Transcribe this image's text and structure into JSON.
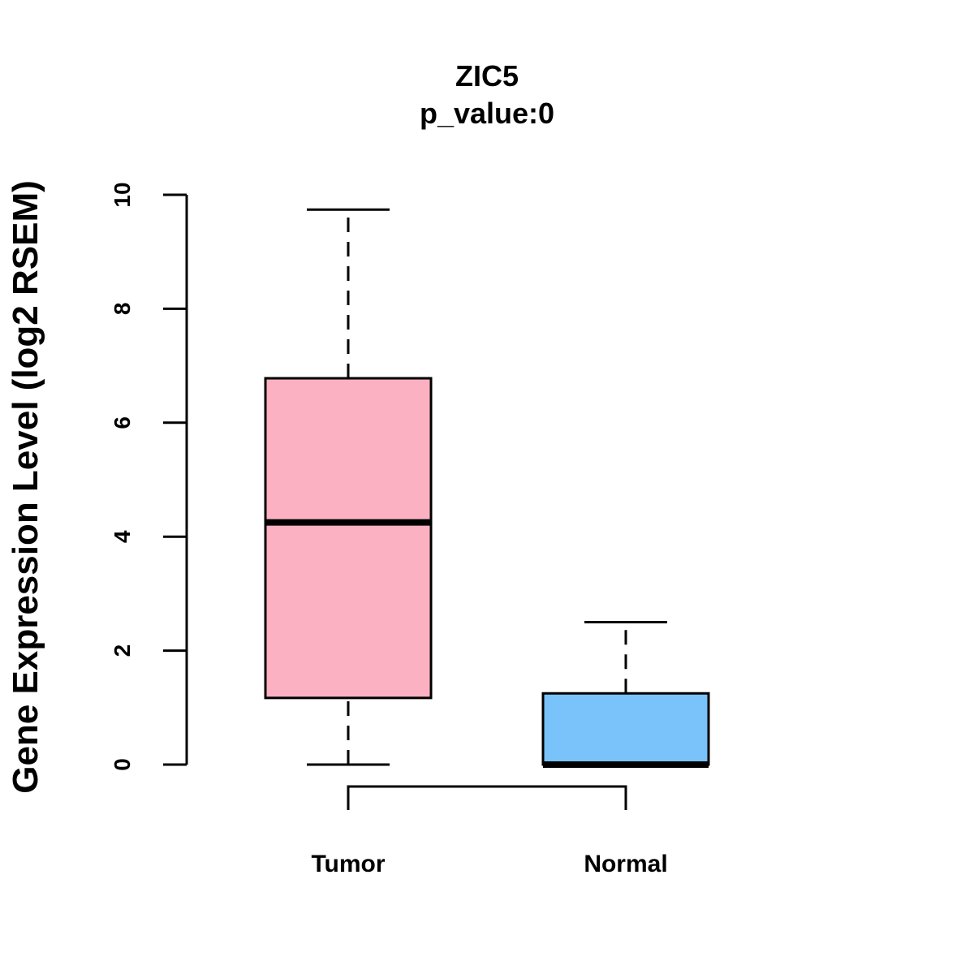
{
  "chart_data": {
    "type": "box",
    "title": "ZIC5",
    "subtitle": "p_value:0",
    "xlabel": "",
    "ylabel": "Gene Expression Level (log2 RSEM)",
    "ylim": [
      0,
      10
    ],
    "yticks": [
      "0",
      "2",
      "4",
      "6",
      "8",
      "10"
    ],
    "grid": false,
    "categories": [
      "Tumor",
      "Normal"
    ],
    "series": [
      {
        "category": "Tumor",
        "min": 0,
        "q1": 1.17,
        "median": 4.25,
        "q3": 6.78,
        "max": 9.74,
        "color": "#FBB1C2"
      },
      {
        "category": "Normal",
        "min": 0,
        "q1": 0,
        "median": 0,
        "q3": 1.25,
        "max": 2.5,
        "color": "#79C2FA"
      }
    ],
    "comparison_bracket": [
      "Tumor",
      "Normal"
    ]
  }
}
